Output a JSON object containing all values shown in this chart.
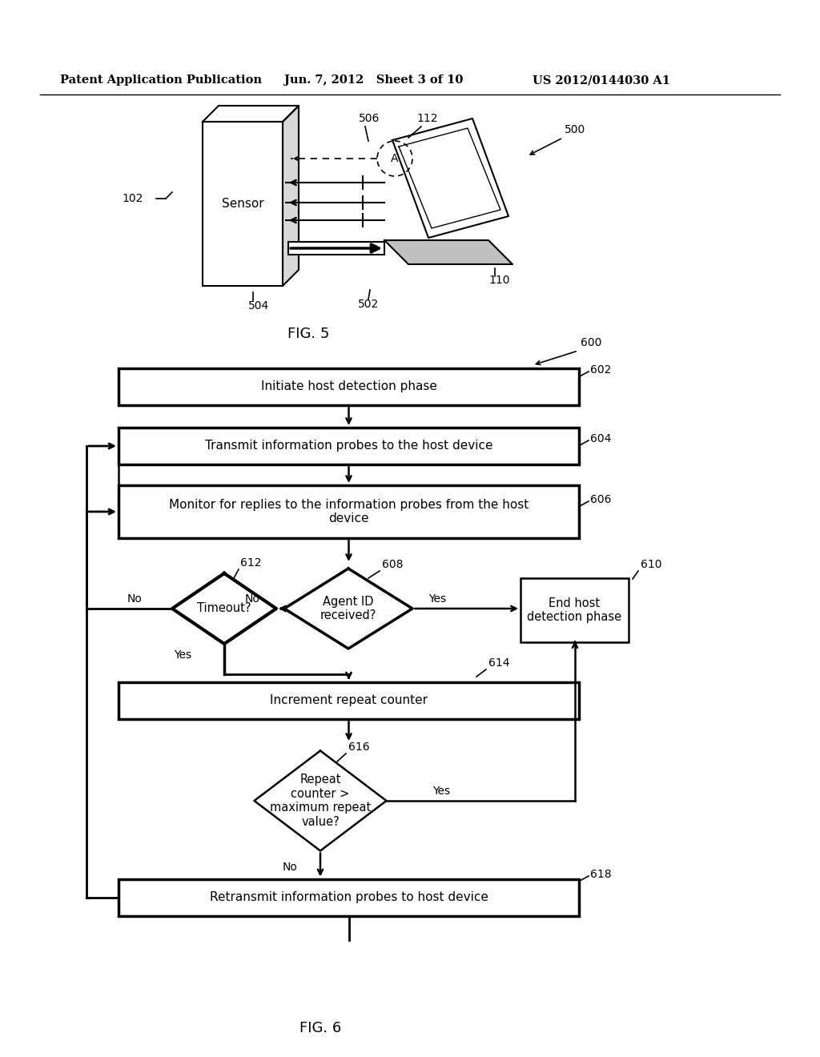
{
  "bg_color": "#ffffff",
  "header_text": "Patent Application Publication",
  "header_date": "Jun. 7, 2012   Sheet 3 of 10",
  "header_patent": "US 2012/0144030 A1",
  "fig5_label": "FIG. 5",
  "fig6_label": "FIG. 6",
  "fig5_ref_500": "500",
  "fig5_ref_102": "102",
  "fig5_ref_110": "110",
  "fig5_ref_112": "112",
  "fig5_ref_504": "504",
  "fig5_ref_502": "502",
  "fig5_ref_506": "506",
  "fig6_ref_600": "600",
  "fig6_ref_602": "602",
  "fig6_ref_604": "604",
  "fig6_ref_606": "606",
  "fig6_ref_608": "608",
  "fig6_ref_610": "610",
  "fig6_ref_612": "612",
  "fig6_ref_614": "614",
  "fig6_ref_616": "616",
  "fig6_ref_618": "618",
  "box602_text": "Initiate host detection phase",
  "box604_text": "Transmit information probes to the host device",
  "box606_text": "Monitor for replies to the information probes from the host\ndevice",
  "diamond608_text": "Agent ID\nreceived?",
  "diamond612_text": "Timeout?",
  "box610_text": "End host\ndetection phase",
  "box614_text": "Increment repeat counter",
  "diamond616_text": "Repeat\ncounter >\nmaximum repeat\nvalue?",
  "box618_text": "Retransmit information probes to host device",
  "sensor_label": "Sensor",
  "circle_a_label": "A"
}
